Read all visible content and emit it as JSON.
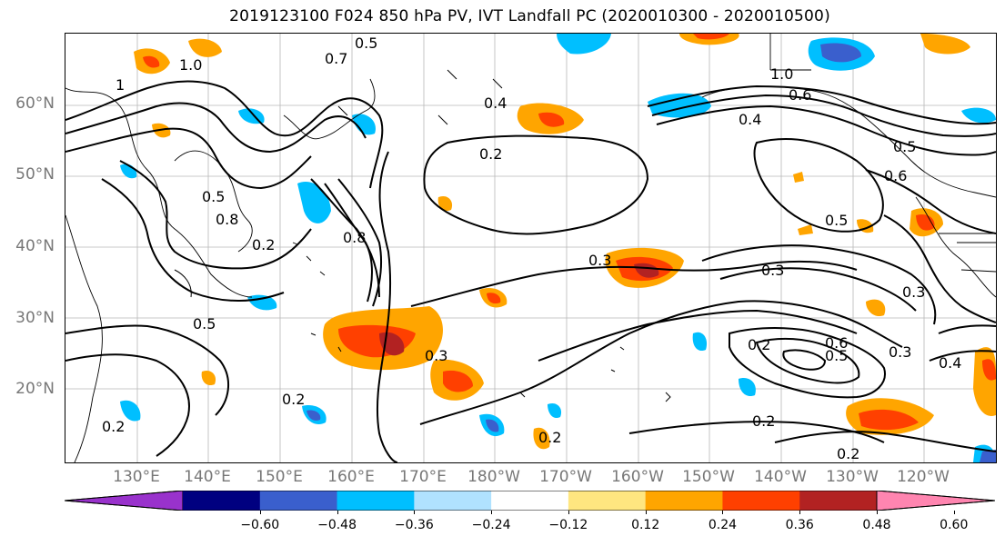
{
  "title": "2019123100 F024 850 hPa PV, IVT Landfall PC (2020010300 - 2020010500)",
  "lat_labels": [
    "60°N",
    "50°N",
    "40°N",
    "30°N",
    "20°N"
  ],
  "lon_labels": [
    "130°E",
    "140°E",
    "150°E",
    "160°E",
    "170°E",
    "180°W",
    "170°W",
    "160°W",
    "150°W",
    "140°W",
    "130°W",
    "120°W"
  ],
  "colorbar": {
    "ticks": [
      "−0.60",
      "−0.48",
      "−0.36",
      "−0.24",
      "−0.12",
      "0.12",
      "0.24",
      "0.36",
      "0.48",
      "0.60"
    ],
    "colors": [
      "#9932cc",
      "#000080",
      "#3a5fcd",
      "#00bfff",
      "#b0e2ff",
      "#ffffff",
      "#ffe680",
      "#ffa500",
      "#ff4000",
      "#b22222",
      "#ff85b0"
    ]
  },
  "contour_labels": [
    "0.5",
    "0.7",
    "1.0",
    "1",
    "0.4",
    "0.2",
    "0.3",
    "0.5",
    "0.8",
    "0.6",
    "0.3",
    "0.5",
    "0.3",
    "0.2",
    "0.2",
    "0.2",
    "0.2",
    "0.3",
    "0.5",
    "0.6",
    "0.4",
    "0.2",
    "0.6",
    "0.3",
    "1.0",
    "0.5",
    "0.4",
    "0.8",
    "0.5",
    "0.2",
    "0.2"
  ]
}
